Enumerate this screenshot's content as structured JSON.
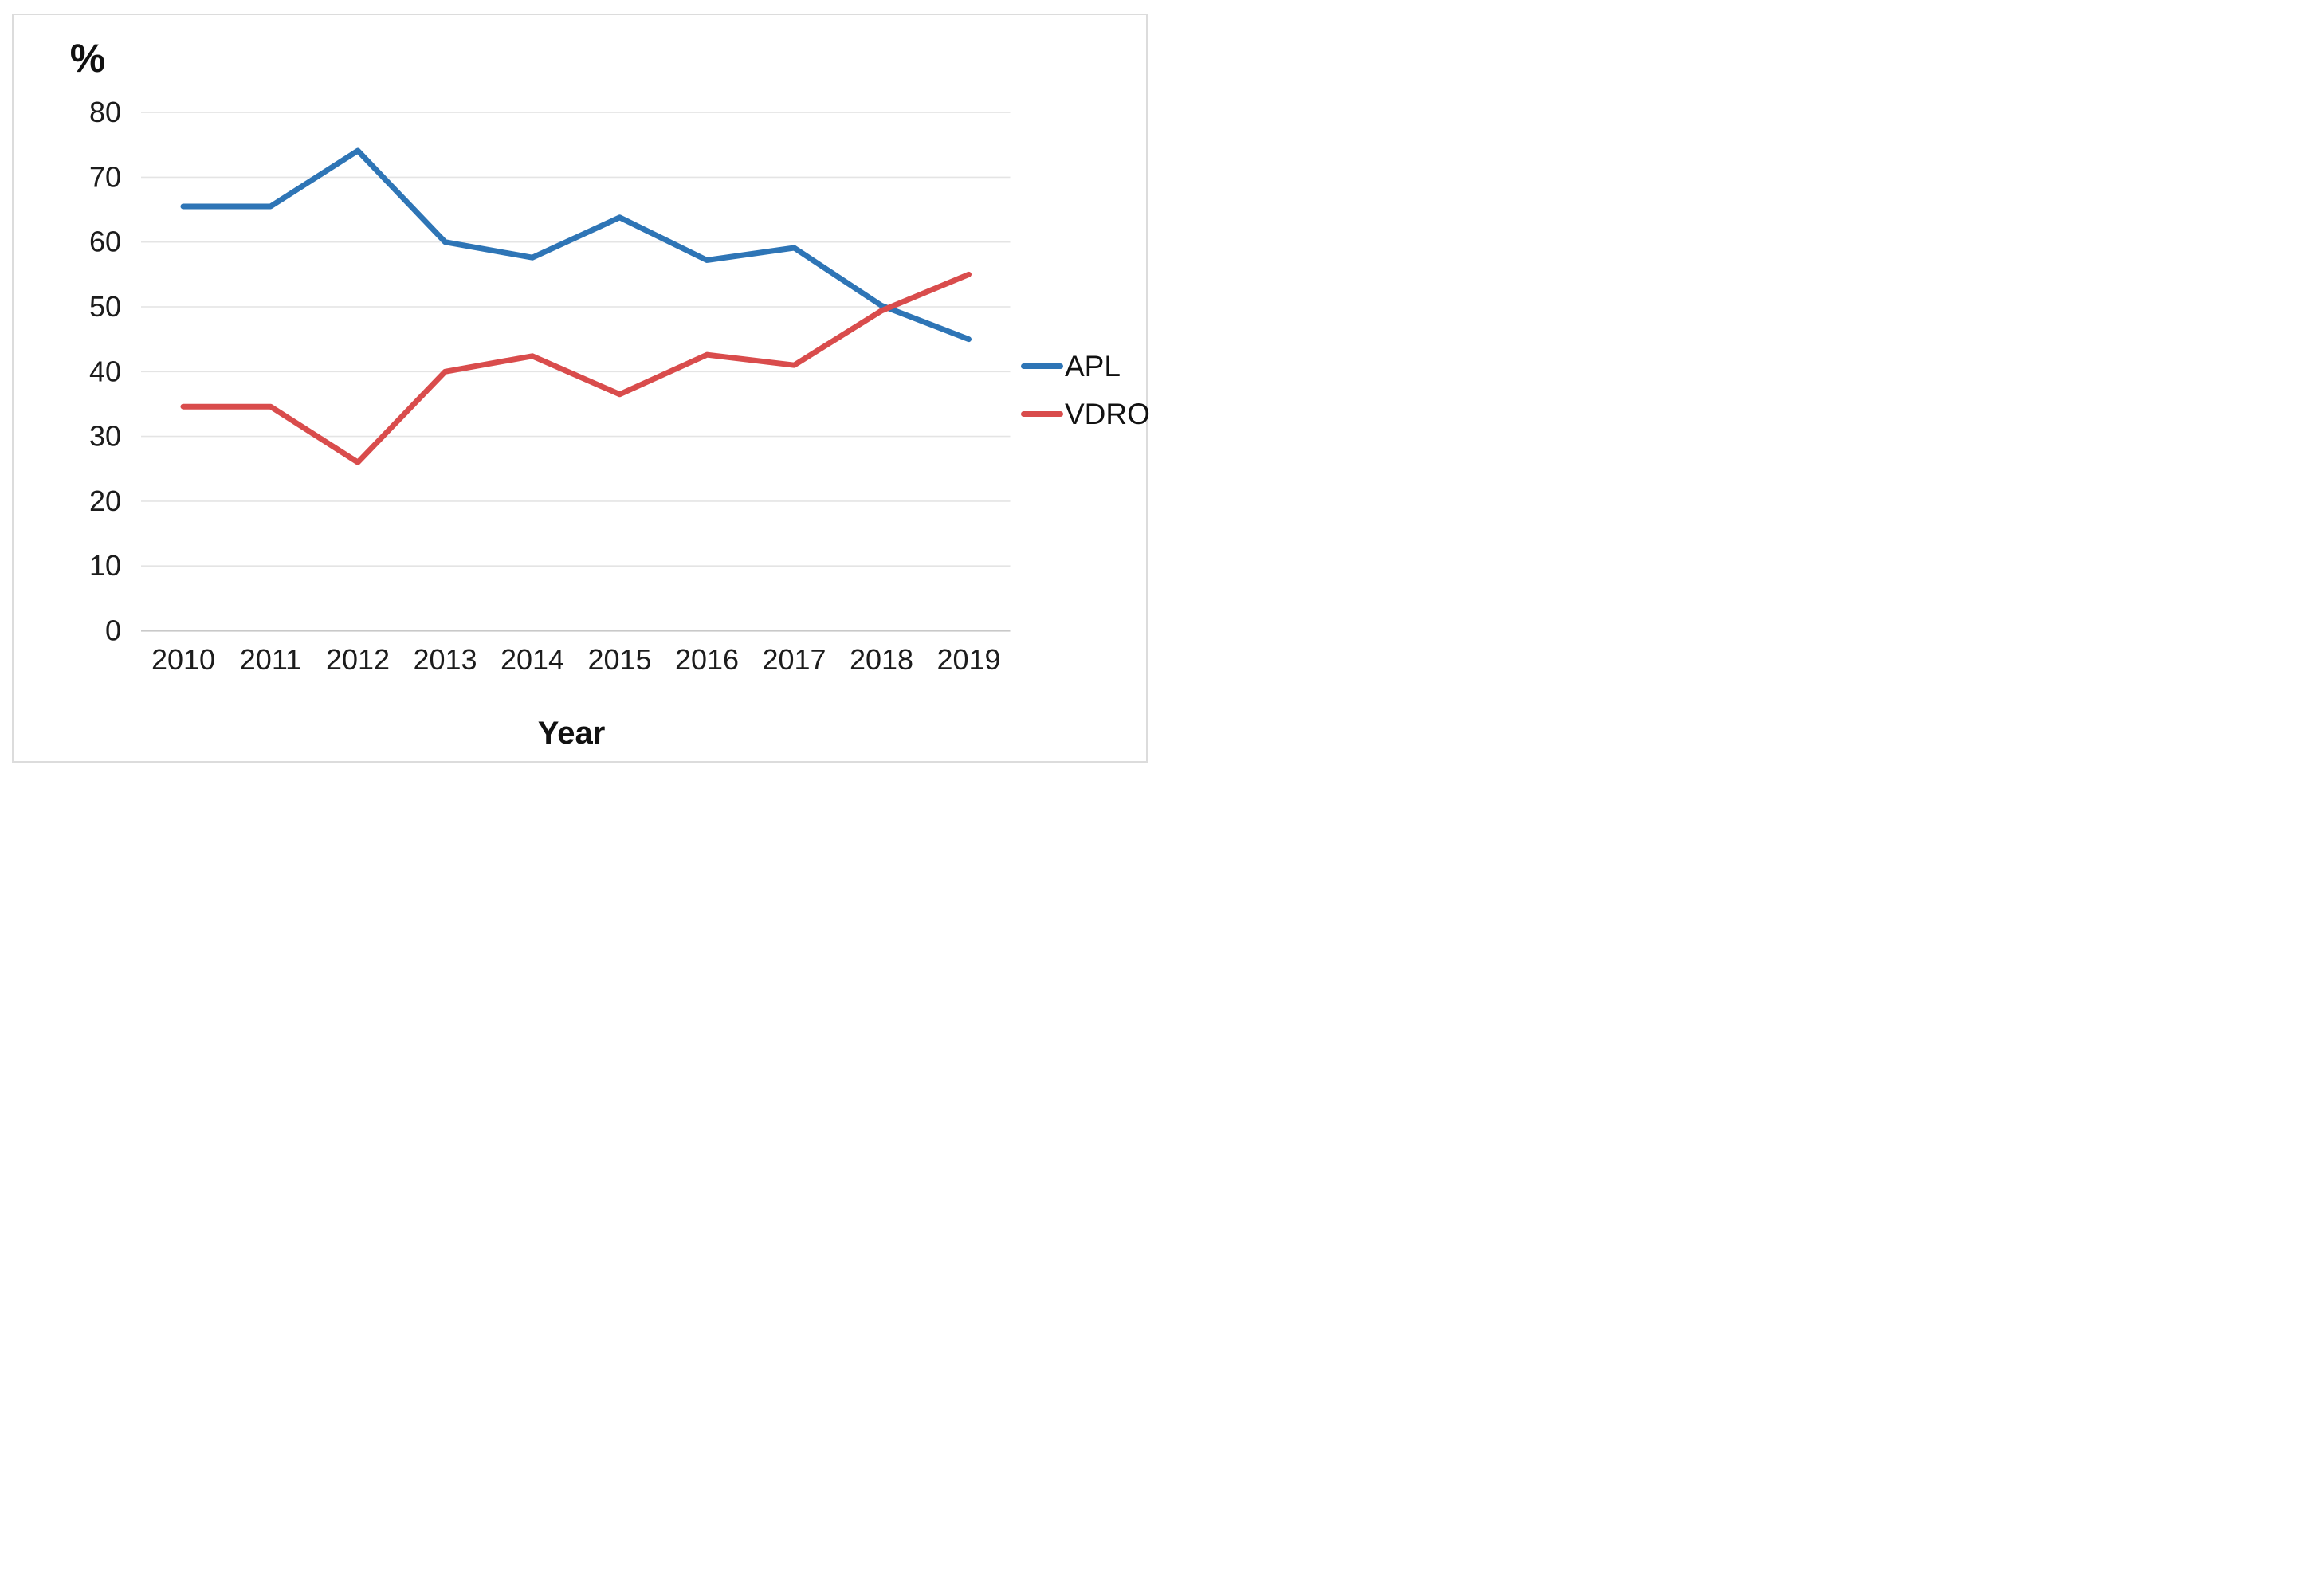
{
  "chart_data": {
    "type": "line",
    "title": "",
    "ylabel": "%",
    "xlabel": "Year",
    "x": [
      "2010",
      "2011",
      "2012",
      "2013",
      "2014",
      "2015",
      "2016",
      "2017",
      "2018",
      "2019"
    ],
    "yticks": [
      0,
      10,
      20,
      30,
      40,
      50,
      60,
      70,
      80
    ],
    "ylim": [
      0,
      80
    ],
    "grid": true,
    "legend_position": "right",
    "series": [
      {
        "name": "APL",
        "color": "#2E75B6",
        "values": [
          65.5,
          65.5,
          74.1,
          60.0,
          57.6,
          63.8,
          57.2,
          59.1,
          50.2,
          45.0
        ]
      },
      {
        "name": "VDRO",
        "color": "#D94C4C",
        "values": [
          34.6,
          34.6,
          26.0,
          40.0,
          42.4,
          36.5,
          42.6,
          41.0,
          49.4,
          55.0
        ]
      }
    ]
  }
}
